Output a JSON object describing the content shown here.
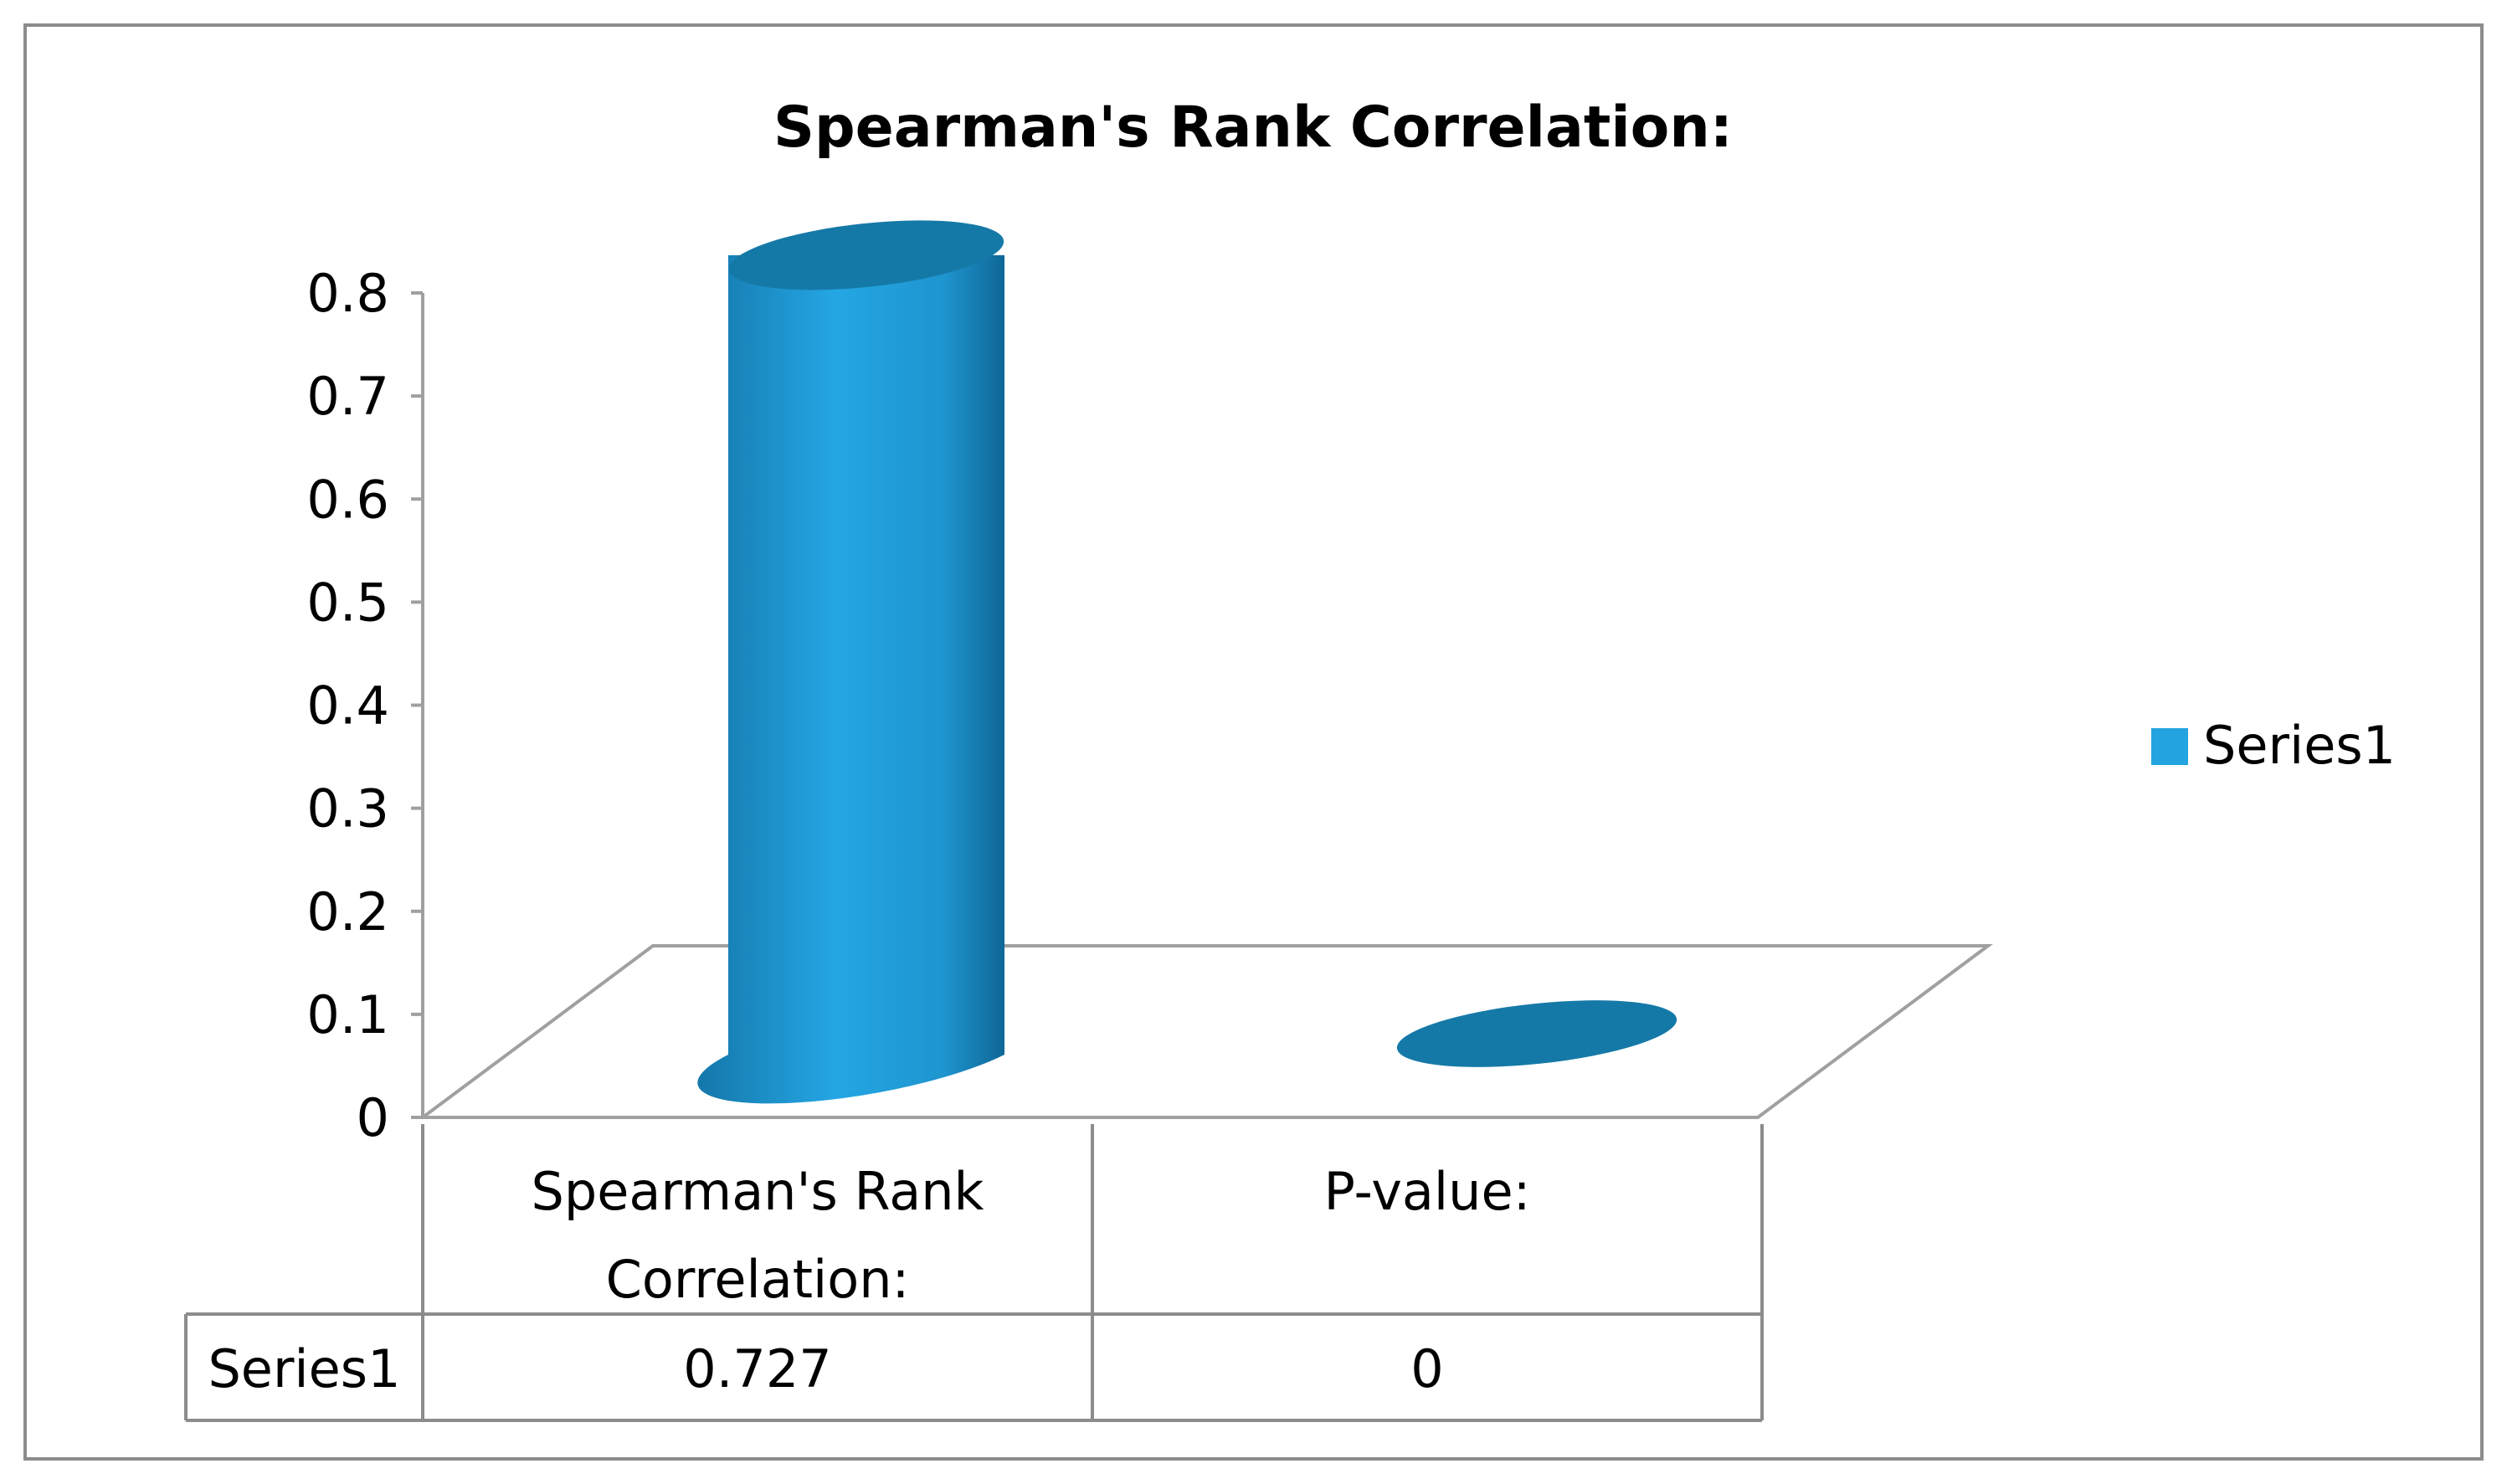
{
  "chart_data": {
    "type": "bar",
    "title": "Spearman's Rank Correlation:",
    "categories": [
      "Spearman's Rank Correlation:",
      "P-value:"
    ],
    "category_label_lines": [
      [
        "Spearman's Rank",
        "Correlation:"
      ],
      [
        "P-value:"
      ]
    ],
    "series": [
      {
        "name": "Series1",
        "values": [
          0.727,
          0
        ],
        "value_labels": [
          "0.727",
          "0"
        ]
      }
    ],
    "ylim": [
      0,
      0.8
    ],
    "yticks": [
      "0",
      "0.1",
      "0.2",
      "0.3",
      "0.4",
      "0.5",
      "0.6",
      "0.7",
      "0.8"
    ],
    "grid": false,
    "legend": "right",
    "data_table": true,
    "style": "3d-cylinder",
    "colors": {
      "bar_front": "#23a3e0",
      "bar_dark": "#0e6c9c",
      "bar_top": "#1579a8",
      "axis": "#a0a0a0",
      "frame": "#8c8c8c"
    }
  }
}
